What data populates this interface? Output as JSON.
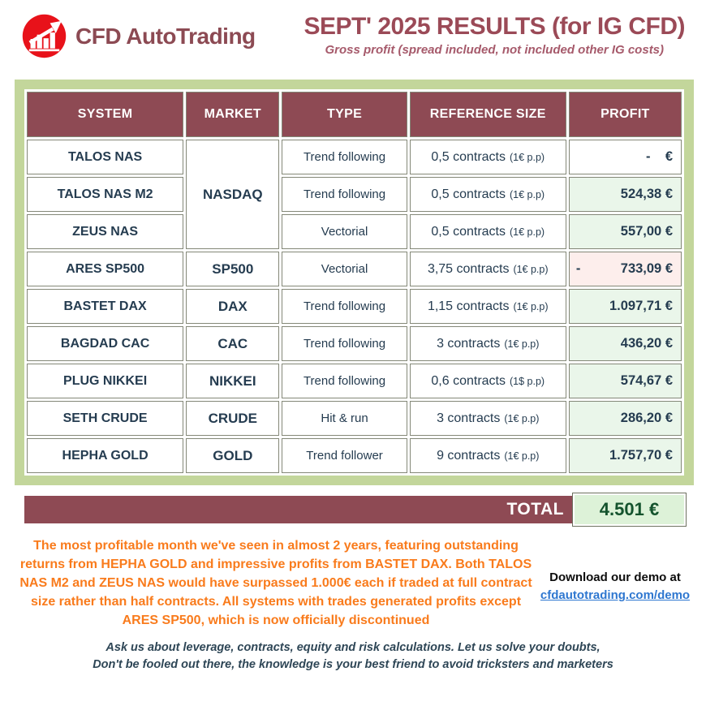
{
  "header": {
    "brand": "CFD AutoTrading",
    "title": "SEPT' 2025 RESULTS (for IG CFD)",
    "subtitle": "Gross profit (spread included, not included other IG costs)"
  },
  "table": {
    "columns": [
      "SYSTEM",
      "MARKET",
      "TYPE",
      "REFERENCE SIZE",
      "PROFIT"
    ],
    "rows": [
      {
        "system": "TALOS NAS",
        "market": "NASDAQ",
        "market_rowspan": 3,
        "type": "Trend following",
        "size": "0,5 contracts",
        "size_note": "(1€ p.p)",
        "profit_state": "none",
        "profit_value": "-    €"
      },
      {
        "system": "TALOS NAS M2",
        "type": "Trend following",
        "size": "0,5 contracts",
        "size_note": "(1€ p.p)",
        "profit_state": "positive",
        "profit_value": "524,38 €"
      },
      {
        "system": "ZEUS NAS",
        "type": "Vectorial",
        "size": "0,5 contracts",
        "size_note": "(1€ p.p)",
        "profit_state": "positive",
        "profit_value": "557,00 €"
      },
      {
        "system": "ARES SP500",
        "market": "SP500",
        "market_rowspan": 1,
        "type": "Vectorial",
        "size": "3,75 contracts",
        "size_note": "(1€ p.p)",
        "profit_state": "negative",
        "profit_sign": "-",
        "profit_value": "733,09 €"
      },
      {
        "system": "BASTET DAX",
        "market": "DAX",
        "market_rowspan": 1,
        "type": "Trend following",
        "size": "1,15 contracts",
        "size_note": "(1€ p.p)",
        "profit_state": "positive",
        "profit_value": "1.097,71 €"
      },
      {
        "system": "BAGDAD CAC",
        "market": "CAC",
        "market_rowspan": 1,
        "type": "Trend following",
        "size": "3 contracts",
        "size_note": "(1€ p.p)",
        "profit_state": "positive",
        "profit_value": "436,20 €"
      },
      {
        "system": "PLUG NIKKEI",
        "market": "NIKKEI",
        "market_rowspan": 1,
        "type": "Trend following",
        "size": "0,6 contracts",
        "size_note": "(1$ p.p)",
        "profit_state": "positive",
        "profit_value": "574,67 €"
      },
      {
        "system": "SETH CRUDE",
        "market": "CRUDE",
        "market_rowspan": 1,
        "type": "Hit & run",
        "size": "3 contracts",
        "size_note": "(1€ p.p)",
        "profit_state": "positive",
        "profit_value": "286,20 €"
      },
      {
        "system": "HEPHA GOLD",
        "market": "GOLD",
        "market_rowspan": 1,
        "type": "Trend follower",
        "size": "9 contracts",
        "size_note": "(1€ p.p)",
        "profit_state": "positive",
        "profit_value": "1.757,70 €"
      }
    ],
    "total_label": "TOTAL",
    "total_value": "4.501 €"
  },
  "summary": "The most profitable month we've seen in almost 2 years, featuring outstanding returns from HEPHA GOLD and impressive profits from BASTET DAX. Both TALOS NAS M2 and ZEUS NAS would have surpassed 1.000€ each if traded at full contract size rather than half contracts. All systems with trades generated profits except ARES SP500, which is now officially discontinued",
  "download": {
    "text": "Download our demo at",
    "link": "cfdautotrading.com/demo"
  },
  "footer": {
    "line1": "Ask us about leverage, contracts, equity and risk calculations. Let us solve your doubts,",
    "line2": "Don't be fooled out there, the knowledge is your best friend to avoid tricksters and marketers"
  },
  "colors": {
    "maroon": "#8E4A54",
    "green_band": "#C3D69B",
    "profit_positive_bg": "#EAF6EA",
    "profit_negative_bg": "#FDEEEC",
    "total_text": "#14532D",
    "summary_orange": "#F97B1C",
    "link_blue": "#2E77D0",
    "logo_red": "#E8121A"
  }
}
